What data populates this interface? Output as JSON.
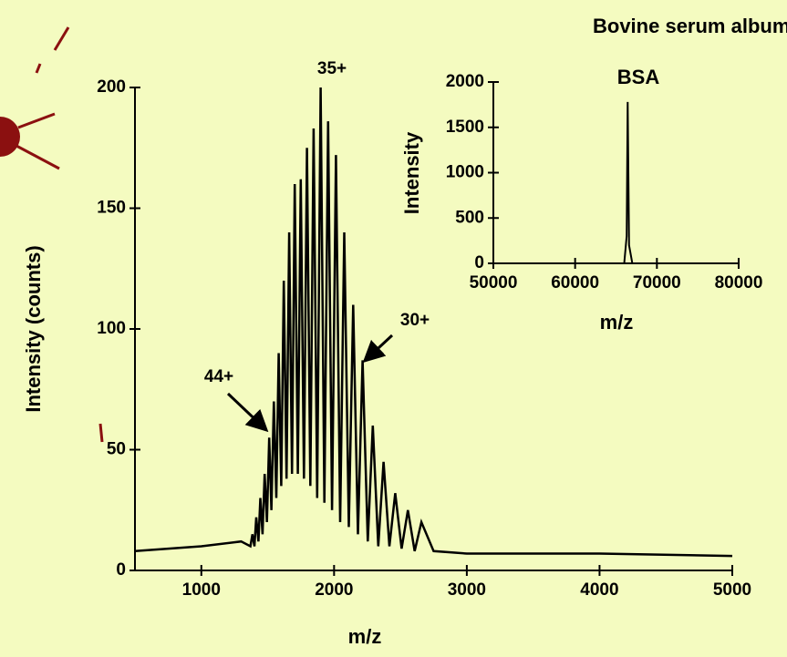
{
  "chart_data": [
    {
      "type": "line",
      "title": "Bovine serum albumin",
      "xlabel": "m/z",
      "ylabel": "Intensity (counts)",
      "x": [
        500,
        1000,
        1300,
        1370,
        1385,
        1400,
        1414,
        1430,
        1445,
        1461,
        1477,
        1494,
        1511,
        1528,
        1546,
        1565,
        1583,
        1602,
        1621,
        1642,
        1662,
        1683,
        1704,
        1727,
        1749,
        1773,
        1796,
        1821,
        1846,
        1873,
        1899,
        1927,
        1955,
        1985,
        2014,
        2046,
        2077,
        2111,
        2144,
        2180,
        2215,
        2254,
        2292,
        2333,
        2373,
        2417,
        2461,
        2509,
        2556,
        2607,
        2658,
        2750,
        3000,
        4000,
        5000
      ],
      "values": [
        8,
        10,
        12,
        10,
        15,
        10,
        22,
        12,
        30,
        15,
        40,
        20,
        55,
        25,
        70,
        30,
        90,
        35,
        120,
        38,
        140,
        40,
        160,
        40,
        162,
        38,
        175,
        35,
        183,
        30,
        200,
        28,
        186,
        25,
        172,
        20,
        140,
        18,
        110,
        15,
        87,
        12,
        60,
        10,
        45,
        10,
        32,
        9,
        25,
        8,
        20,
        8,
        7,
        7,
        6
      ],
      "color": "#000000",
      "xlim": [
        500,
        5000
      ],
      "xticks": [
        1000,
        2000,
        3000,
        4000,
        5000
      ],
      "ylim": [
        0,
        200
      ],
      "yticks": [
        0,
        50,
        100,
        150,
        200
      ],
      "annotations": [
        "35+",
        "30+",
        "44+"
      ]
    },
    {
      "type": "line",
      "title": "BSA",
      "xlabel": "m/z",
      "ylabel": "Intensity",
      "x": [
        50000,
        66000,
        66300,
        66430,
        66600,
        67000,
        80000
      ],
      "values": [
        0,
        0,
        300,
        1780,
        200,
        0,
        0
      ],
      "color": "#000000",
      "xlim": [
        50000,
        80000
      ],
      "xticks": [
        50000,
        60000,
        70000,
        80000
      ],
      "ylim": [
        0,
        2000
      ],
      "yticks": [
        0,
        500,
        1000,
        1500,
        2000
      ]
    }
  ]
}
